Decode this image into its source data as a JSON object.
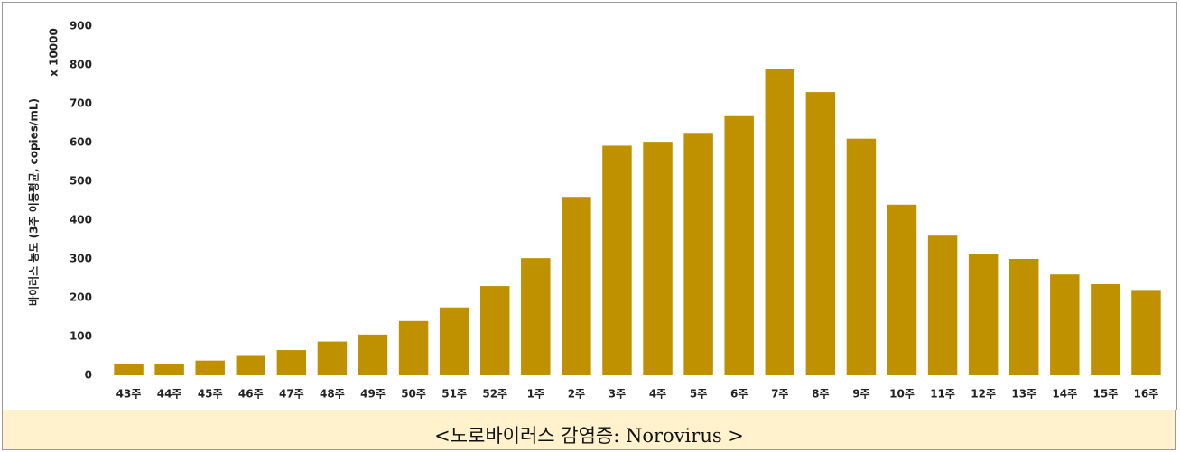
{
  "chart_data": {
    "type": "bar",
    "ylabel": "바이러스 농도 (3주 이동평균, copies/mL)",
    "ylabel_multiplier": "x 10000",
    "categories": [
      "43주",
      "44주",
      "45주",
      "46주",
      "47주",
      "48주",
      "49주",
      "50주",
      "51주",
      "52주",
      "1주",
      "2주",
      "3주",
      "4주",
      "5주",
      "6주",
      "7주",
      "8주",
      "9주",
      "10주",
      "11주",
      "12주",
      "13주",
      "14주",
      "15주",
      "16주"
    ],
    "values": [
      28,
      30,
      38,
      50,
      65,
      87,
      105,
      140,
      175,
      230,
      302,
      460,
      592,
      602,
      625,
      668,
      790,
      730,
      610,
      440,
      360,
      312,
      300,
      260,
      235,
      220
    ],
    "color": "#bf9000",
    "ylim": [
      0,
      900
    ],
    "yticks": [
      0,
      100,
      200,
      300,
      400,
      500,
      600,
      700,
      800,
      900
    ],
    "grid": false
  },
  "caption": "<노로바이러스 감염증: Norovirus >"
}
